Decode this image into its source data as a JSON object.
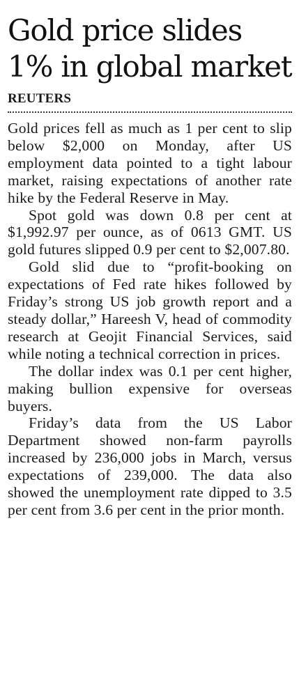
{
  "article": {
    "headline": "Gold price slides 1% in global market",
    "byline": "REUTERS",
    "paragraphs": [
      "Gold prices fell as much as 1 per cent to slip below $2,000 on Monday, after US employment data pointed to a tight labour market, raising expectations of another rate hike by the Federal Reserve in May.",
      "Spot gold was down 0.8 per cent at $1,992.97 per ounce, as of 0613 GMT. US gold futures slipped 0.9 per cent to $2,007.80.",
      "Gold slid due to “profit-booking on expectations of Fed rate hikes followed by Friday’s strong US job growth report and a steady dollar,” Hareesh V, head of commodity research at Geojit Financial Services, said while noting a technical correction in prices.",
      "The dollar index was 0.1 per cent higher, making bullion expensive for overseas buyers.",
      "Friday’s data from the US Labor Department showed non-farm payrolls increased by 236,000 jobs in March, versus expectations of 239,000. The data also showed the unemployment rate dipped to 3.5 per cent from 3.6 per cent in the prior month."
    ]
  }
}
